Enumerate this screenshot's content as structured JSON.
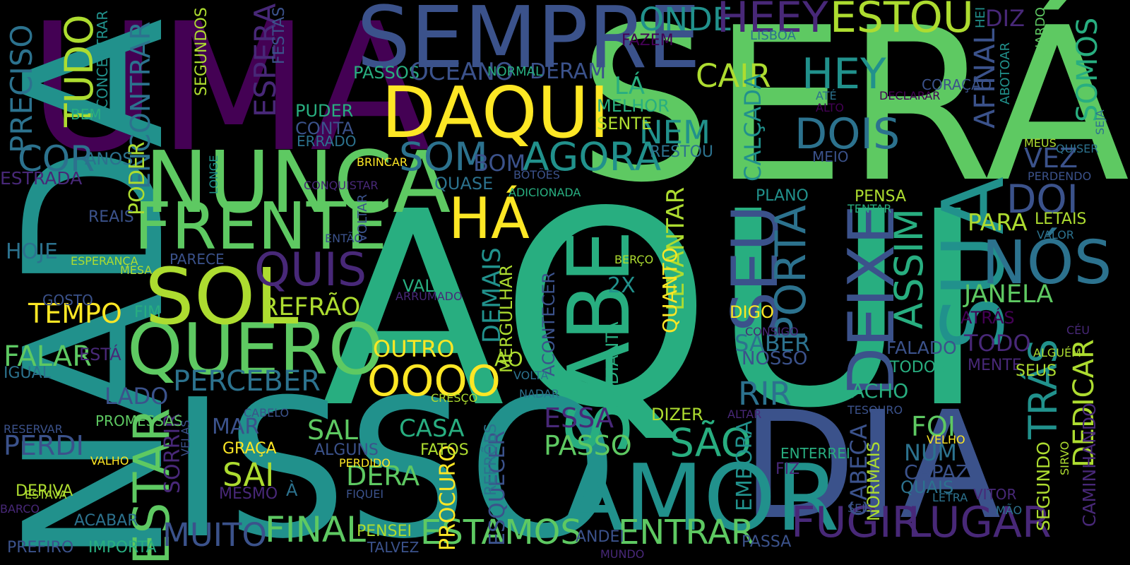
{
  "colors": {
    "background": "#000000",
    "palette": {
      "a": "#440154",
      "b": "#3b528b",
      "c": "#2c728e",
      "d": "#21918c",
      "e": "#28ae80",
      "f": "#5ec962",
      "g": "#addc30",
      "h": "#fde725",
      "i": "#482878"
    }
  },
  "words": [
    {
      "text": "SERÁ",
      "c": "f"
    },
    {
      "text": "AQUI",
      "c": "e"
    },
    {
      "text": "ISSO",
      "c": "d"
    },
    {
      "text": "DIA",
      "c": "b"
    },
    {
      "text": "UMA",
      "c": "a"
    },
    {
      "text": "NADA",
      "c": "d"
    },
    {
      "text": "SEMPRE",
      "c": "b"
    },
    {
      "text": "NUNCA",
      "c": "f"
    },
    {
      "text": "DAQUI",
      "c": "h"
    },
    {
      "text": "FRENTE",
      "c": "f"
    },
    {
      "text": "QUERO",
      "c": "f"
    },
    {
      "text": "SOL",
      "c": "g"
    },
    {
      "text": "SUA",
      "c": "d"
    },
    {
      "text": "AMOR",
      "c": "d"
    },
    {
      "text": "DEIXE",
      "c": "b"
    },
    {
      "text": "SABE",
      "c": "e"
    },
    {
      "text": "FUGIR",
      "c": "i"
    },
    {
      "text": "LUGAR",
      "c": "i"
    },
    {
      "text": "ONDE",
      "c": "d"
    },
    {
      "text": "HEEY",
      "c": "i"
    },
    {
      "text": "ESTOU",
      "c": "g"
    },
    {
      "text": "HÁ",
      "c": "h"
    },
    {
      "text": "AGORA",
      "c": "d"
    },
    {
      "text": "NÓS",
      "c": "c"
    },
    {
      "text": "DOIS",
      "c": "c"
    },
    {
      "text": "HEY",
      "c": "d"
    },
    {
      "text": "DOI",
      "c": "b"
    },
    {
      "text": "SEU",
      "c": "b"
    },
    {
      "text": "PORTA",
      "c": "c"
    },
    {
      "text": "ASSIM",
      "c": "e"
    },
    {
      "text": "QUIS",
      "c": "i"
    },
    {
      "text": "SOM",
      "c": "c"
    },
    {
      "text": "NEM",
      "c": "d"
    },
    {
      "text": "CAIR",
      "c": "g"
    },
    {
      "text": "TUDO",
      "c": "g"
    },
    {
      "text": "COR",
      "c": "c"
    },
    {
      "text": "TEMPO",
      "c": "h"
    },
    {
      "text": "FALAR",
      "c": "f"
    },
    {
      "text": "ESTAR",
      "c": "f"
    },
    {
      "text": "FINAL",
      "c": "f"
    },
    {
      "text": "ESTAMOS",
      "c": "f"
    },
    {
      "text": "ENTRAR",
      "c": "f"
    },
    {
      "text": "MUITO",
      "c": "b"
    },
    {
      "text": "PERCEBER",
      "c": "c"
    },
    {
      "text": "OOOO",
      "c": "h"
    },
    {
      "text": "OUTRO",
      "c": "h"
    },
    {
      "text": "REFRÃO",
      "c": "g"
    },
    {
      "text": "JANELA",
      "c": "f"
    },
    {
      "text": "PARA",
      "c": "g"
    },
    {
      "text": "TRÁS",
      "c": "d"
    },
    {
      "text": "DEDICAR",
      "c": "g"
    },
    {
      "text": "RIR",
      "c": "c"
    },
    {
      "text": "SÃO",
      "c": "e"
    },
    {
      "text": "PASSO",
      "c": "f"
    },
    {
      "text": "ESSA",
      "c": "i"
    },
    {
      "text": "SAL",
      "c": "f"
    },
    {
      "text": "SAI",
      "c": "g"
    },
    {
      "text": "DERA",
      "c": "f"
    },
    {
      "text": "CASA",
      "c": "e"
    },
    {
      "text": "MAR",
      "c": "b"
    },
    {
      "text": "PERDI",
      "c": "b"
    },
    {
      "text": "HOJE",
      "c": "c"
    },
    {
      "text": "LADO",
      "c": "b"
    },
    {
      "text": "FOI",
      "c": "f"
    },
    {
      "text": "NUM",
      "c": "c"
    },
    {
      "text": "CAPAZ",
      "c": "b"
    },
    {
      "text": "QUAIS",
      "c": "c"
    },
    {
      "text": "VEZ",
      "c": "b"
    },
    {
      "text": "TODO",
      "c": "i"
    },
    {
      "text": "SABER",
      "c": "c"
    },
    {
      "text": "NOSSO",
      "c": "b"
    },
    {
      "text": "FALADO",
      "c": "b"
    },
    {
      "text": "TODOS",
      "c": "e"
    },
    {
      "text": "MENTE",
      "c": "i"
    },
    {
      "text": "SEUS",
      "c": "g"
    },
    {
      "text": "ACHO",
      "c": "e"
    },
    {
      "text": "DIZER",
      "c": "g"
    },
    {
      "text": "DIGO",
      "c": "h"
    },
    {
      "text": "2X",
      "c": "d"
    },
    {
      "text": "DEMAIS",
      "c": "d"
    },
    {
      "text": "PRECISO",
      "c": "c"
    },
    {
      "text": "ENCONTRAR",
      "c": "c"
    },
    {
      "text": "ESPERA",
      "c": "i"
    },
    {
      "text": "CALÇADA",
      "c": "d"
    },
    {
      "text": "LEVANTAR",
      "c": "g"
    },
    {
      "text": "QUANTO",
      "c": "h"
    },
    {
      "text": "EMBORA",
      "c": "d"
    },
    {
      "text": "CABEÇA",
      "c": "b"
    },
    {
      "text": "AFINAL",
      "c": "b"
    },
    {
      "text": "SOMOS",
      "c": "e"
    },
    {
      "text": "DIZ",
      "c": "i"
    },
    {
      "text": "PODER",
      "c": "g"
    },
    {
      "text": "SORRIR",
      "c": "i"
    },
    {
      "text": "ESQUECER",
      "c": "b"
    },
    {
      "text": "PROCURO",
      "c": "h"
    },
    {
      "text": "SEGUNDO",
      "c": "g"
    },
    {
      "text": "CAMINHANDO",
      "c": "i"
    },
    {
      "text": "MERGULHAR",
      "c": "g"
    },
    {
      "text": "ACONTECER",
      "c": "b"
    },
    {
      "text": "ADIANTA",
      "c": "e"
    },
    {
      "text": "REFRÕES",
      "c": "c"
    },
    {
      "text": "NORMAIS",
      "c": "g"
    },
    {
      "text": "PASSOS",
      "c": "e"
    },
    {
      "text": "OCEANO",
      "c": "b"
    },
    {
      "text": "DERAM",
      "c": "b"
    },
    {
      "text": "LÁ",
      "c": "e"
    },
    {
      "text": "MELHOR",
      "c": "e"
    },
    {
      "text": "SENTE",
      "c": "g"
    },
    {
      "text": "RESTOU",
      "c": "c"
    },
    {
      "text": "PUDER",
      "c": "e"
    },
    {
      "text": "CONTA",
      "c": "b"
    },
    {
      "text": "ERRADO",
      "c": "c"
    },
    {
      "text": "BOM",
      "c": "b"
    },
    {
      "text": "QUASE",
      "c": "c"
    },
    {
      "text": "PLANO",
      "c": "d"
    },
    {
      "text": "PENSA",
      "c": "g"
    },
    {
      "text": "LETAIS",
      "c": "g"
    },
    {
      "text": "ATRÁS",
      "c": "a"
    },
    {
      "text": "ANOS",
      "c": "c"
    },
    {
      "text": "BEM",
      "c": "e"
    },
    {
      "text": "REAIS",
      "c": "b"
    },
    {
      "text": "PARECE",
      "c": "b"
    },
    {
      "text": "GOSTO",
      "c": "b"
    },
    {
      "text": "FIM",
      "c": "e"
    },
    {
      "text": "IGUAL",
      "c": "c"
    },
    {
      "text": "ESTÁ",
      "c": "i"
    },
    {
      "text": "PROMESSAS",
      "c": "f"
    },
    {
      "text": "AO",
      "c": "g"
    },
    {
      "text": "VALE",
      "c": "e"
    },
    {
      "text": "GRAÇA",
      "c": "h"
    },
    {
      "text": "ALGUNS",
      "c": "b"
    },
    {
      "text": "FATOS",
      "c": "g"
    },
    {
      "text": "PENSEI",
      "c": "g"
    },
    {
      "text": "ANDEI",
      "c": "b"
    },
    {
      "text": "PASSA",
      "c": "b"
    },
    {
      "text": "TALVEZ",
      "c": "b"
    },
    {
      "text": "IMPORTA",
      "c": "e"
    },
    {
      "text": "PREFIRO",
      "c": "b"
    },
    {
      "text": "ACABAR",
      "c": "c"
    },
    {
      "text": "DERIVA",
      "c": "g"
    },
    {
      "text": "MESMO",
      "c": "i"
    },
    {
      "text": "À",
      "c": "c"
    },
    {
      "text": "ESTRADA",
      "c": "i"
    },
    {
      "text": "CONCENTRAR",
      "c": "d"
    },
    {
      "text": "SEGUNDOS",
      "c": "g"
    },
    {
      "text": "FESTAS",
      "c": "b"
    },
    {
      "text": "FAZEM",
      "c": "a"
    },
    {
      "text": "LISBOA",
      "c": "c"
    },
    {
      "text": "NORMAL",
      "c": "e"
    },
    {
      "text": "GUARDO",
      "c": "f"
    },
    {
      "text": "HEI",
      "c": "d"
    },
    {
      "text": "ABOTOAR",
      "c": "d"
    },
    {
      "text": "CORAÇÃO",
      "c": "b"
    },
    {
      "text": "ATÉ",
      "c": "c"
    },
    {
      "text": "DECLARAR",
      "c": "a"
    },
    {
      "text": "ALTO",
      "c": "a"
    },
    {
      "text": "SEJA",
      "c": "c"
    },
    {
      "text": "MEUS",
      "c": "g"
    },
    {
      "text": "QUISER",
      "c": "c"
    },
    {
      "text": "MEIO",
      "c": "b"
    },
    {
      "text": "PERDENDO",
      "c": "b"
    },
    {
      "text": "BRINCAR",
      "c": "h"
    },
    {
      "text": "LONGE",
      "c": "d"
    },
    {
      "text": "CONQUISTAR",
      "c": "i"
    },
    {
      "text": "BOTÕES",
      "c": "b"
    },
    {
      "text": "ADICIONADA",
      "c": "e"
    },
    {
      "text": "VOLTAR",
      "c": "b"
    },
    {
      "text": "ENTÃO",
      "c": "b"
    },
    {
      "text": "ESPERANÇA",
      "c": "g"
    },
    {
      "text": "MESA",
      "c": "g"
    },
    {
      "text": "BERÇO",
      "c": "g"
    },
    {
      "text": "TENTAR",
      "c": "e"
    },
    {
      "text": "VALOR",
      "c": "c"
    },
    {
      "text": "ARRUMADO",
      "c": "i"
    },
    {
      "text": "CONSIGO",
      "c": "i"
    },
    {
      "text": "CÉU",
      "c": "i"
    },
    {
      "text": "ALGUÉM",
      "c": "g"
    },
    {
      "text": "VOLTA",
      "c": "c"
    },
    {
      "text": "NADAR",
      "c": "c"
    },
    {
      "text": "CRESÇO",
      "c": "g"
    },
    {
      "text": "CABELO",
      "c": "b"
    },
    {
      "text": "ALTAR",
      "c": "i"
    },
    {
      "text": "TESOURO",
      "c": "b"
    },
    {
      "text": "VELHO",
      "c": "h"
    },
    {
      "text": "ENTERREI",
      "c": "e"
    },
    {
      "text": "FIZ",
      "c": "i"
    },
    {
      "text": "SIRVO",
      "c": "g"
    },
    {
      "text": "VITOR",
      "c": "i"
    },
    {
      "text": "MÃO",
      "c": "c"
    },
    {
      "text": "SEIS",
      "c": "b"
    },
    {
      "text": "LETRA",
      "c": "c"
    },
    {
      "text": "VELAS",
      "c": "b"
    },
    {
      "text": "PERDIDO",
      "c": "h"
    },
    {
      "text": "FIQUEI",
      "c": "b"
    },
    {
      "text": "RESERVAR",
      "c": "b"
    },
    {
      "text": "VALHO",
      "c": "h"
    },
    {
      "text": "ESTAVA",
      "c": "g"
    },
    {
      "text": "BARCO",
      "c": "i"
    },
    {
      "text": "MUNDO",
      "c": "i"
    },
    {
      "text": "PERTO",
      "c": "b"
    }
  ]
}
